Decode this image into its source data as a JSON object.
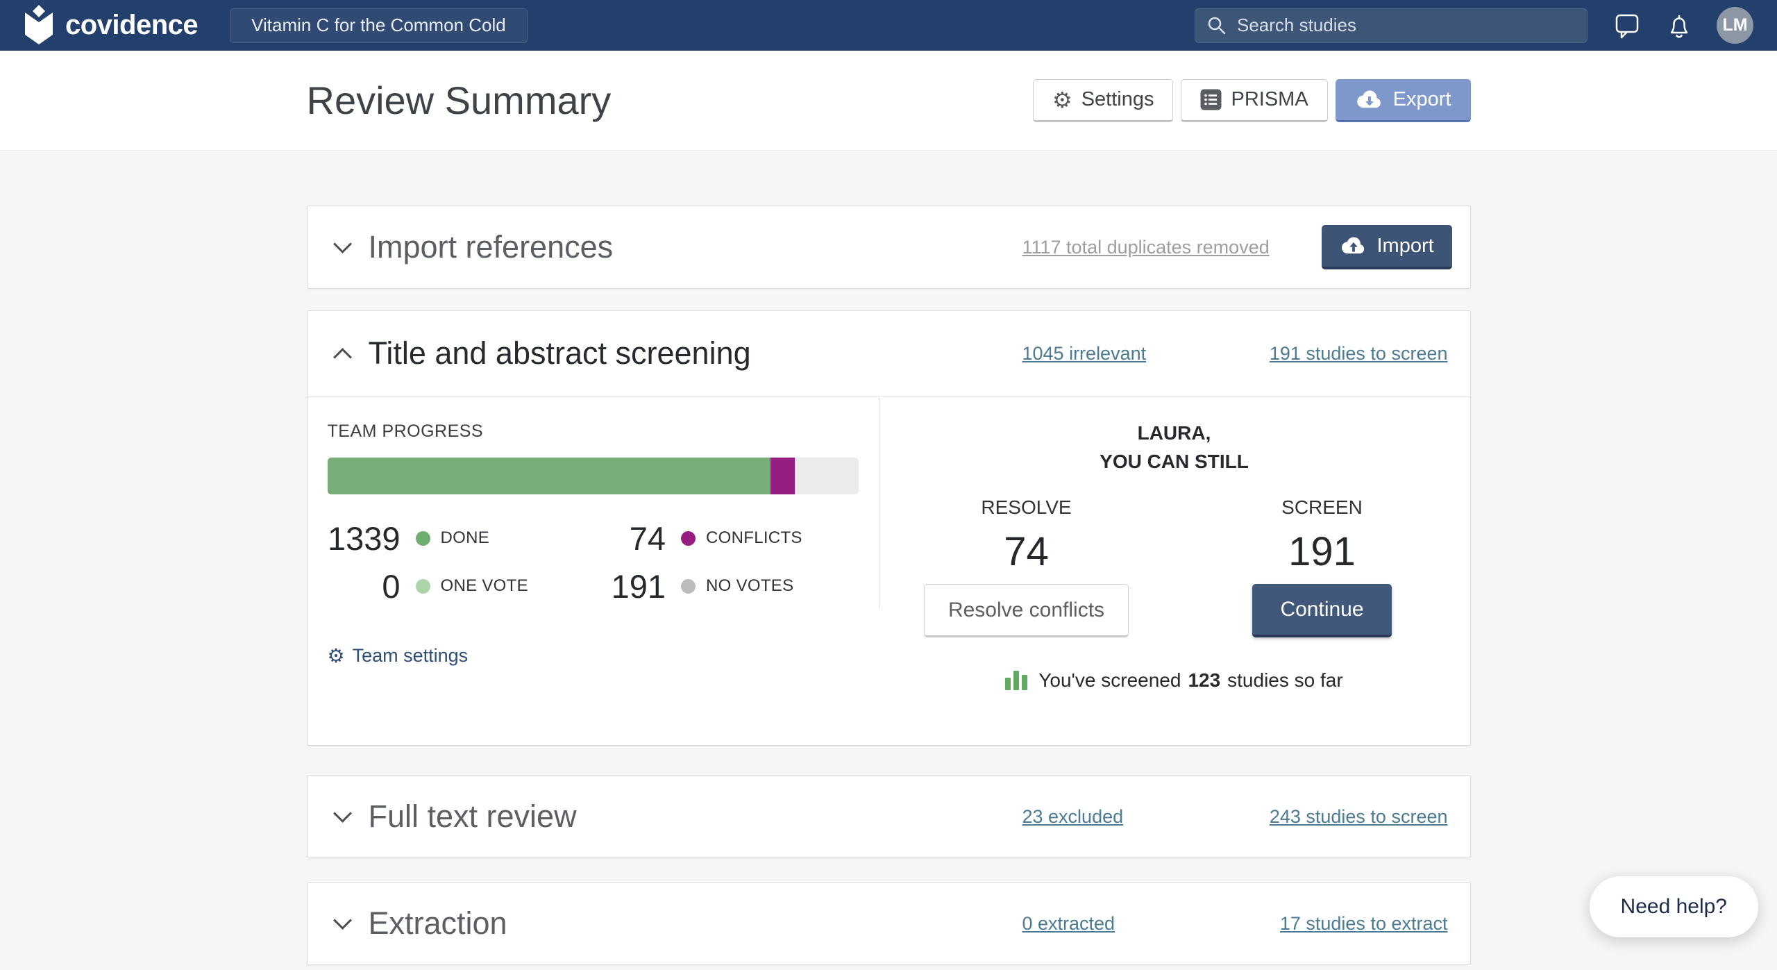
{
  "navbar": {
    "brand": "covidence",
    "project_name": "Vitamin C for the Common Cold",
    "search_placeholder": "Search studies",
    "avatar_initials": "LM"
  },
  "header": {
    "title": "Review Summary",
    "settings_label": "Settings",
    "prisma_label": "PRISMA",
    "export_label": "Export"
  },
  "sections": {
    "import": {
      "title": "Import references",
      "mid_link": "1117 total duplicates removed",
      "button_label": "Import"
    },
    "screening": {
      "title": "Title and abstract screening",
      "mid_link": "1045 irrelevant",
      "right_link": "191 studies to screen"
    },
    "fulltext": {
      "title": "Full text review",
      "mid_link": "23 excluded",
      "right_link": "243 studies to screen"
    },
    "extraction": {
      "title": "Extraction",
      "mid_link": "0 extracted",
      "right_link": "17 studies to extract"
    }
  },
  "team_progress": {
    "label": "TEAM PROGRESS",
    "bar": {
      "done_pct": 83.5,
      "conflicts_pct": 4.6
    },
    "stats": [
      {
        "value": "1339",
        "label": "DONE",
        "color": "#6fae6f"
      },
      {
        "value": "74",
        "label": "CONFLICTS",
        "color": "#951e80"
      },
      {
        "value": "0",
        "label": "ONE VOTE",
        "color": "#abd4a8"
      },
      {
        "value": "191",
        "label": "NO VOTES",
        "color": "#bcbcbc"
      }
    ],
    "team_settings_label": "Team settings"
  },
  "actions": {
    "greeting_line1": "LAURA,",
    "greeting_line2": "YOU CAN STILL",
    "resolve_label": "RESOLVE",
    "resolve_value": "74",
    "resolve_button": "Resolve conflicts",
    "screen_label": "SCREEN",
    "screen_value": "191",
    "continue_button": "Continue",
    "screened_prefix": "You've screened",
    "screened_count": "123",
    "screened_suffix": "studies so far"
  },
  "need_help_label": "Need help?",
  "colors": {
    "navbar_bg": "#233f6b",
    "primary_button": "#3e5477",
    "export_button": "#7e98cc",
    "progress_done": "#77ae77",
    "progress_conflicts": "#951e80",
    "progress_track": "#ececec",
    "link": "#4b7a92"
  }
}
